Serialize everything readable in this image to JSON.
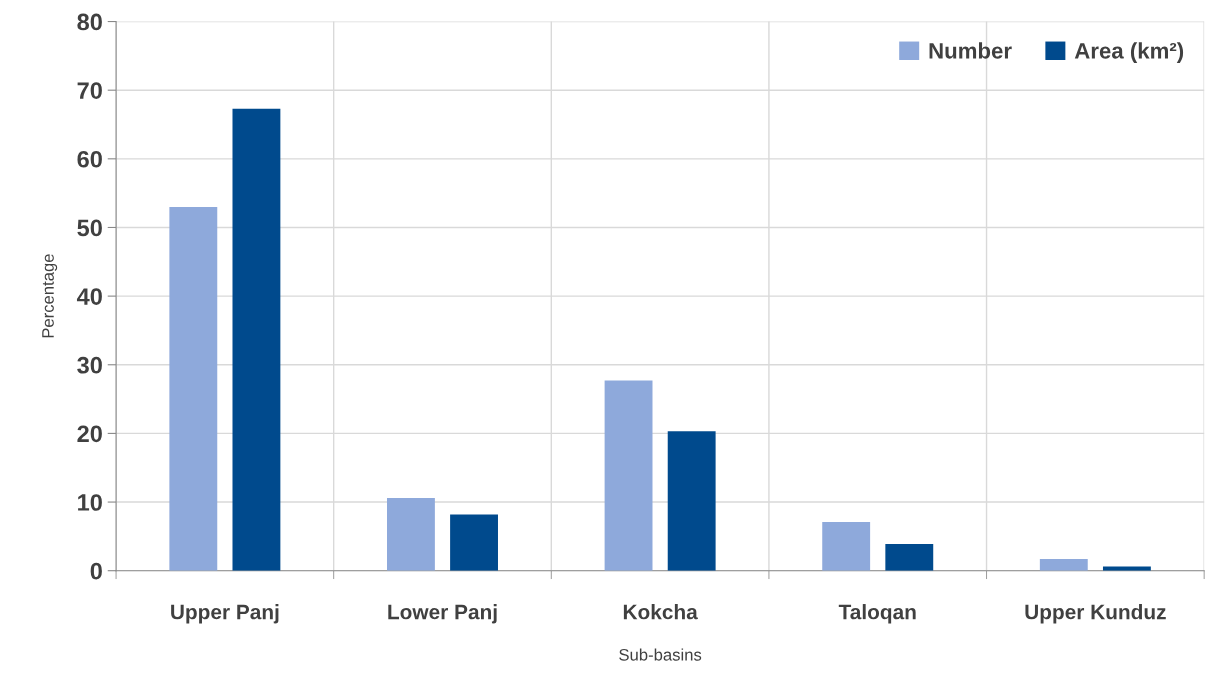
{
  "chart_data": {
    "type": "bar",
    "xlabel": "Sub-basins",
    "ylabel": "Percentage",
    "categories": [
      "Upper Panj",
      "Lower Panj",
      "Kokcha",
      "Taloqan",
      "Upper Kunduz"
    ],
    "series": [
      {
        "name": "Number",
        "color": "#8ea9db",
        "values": [
          53.0,
          10.6,
          27.7,
          7.1,
          1.7
        ]
      },
      {
        "name": "Area (km²)",
        "color": "#004a8d",
        "values": [
          67.3,
          8.2,
          20.3,
          3.9,
          0.6
        ]
      }
    ],
    "ylim": [
      0,
      80
    ],
    "yticks": [
      0,
      10,
      20,
      30,
      40,
      50,
      60,
      70,
      80
    ],
    "grid": true,
    "legend": "top right"
  }
}
